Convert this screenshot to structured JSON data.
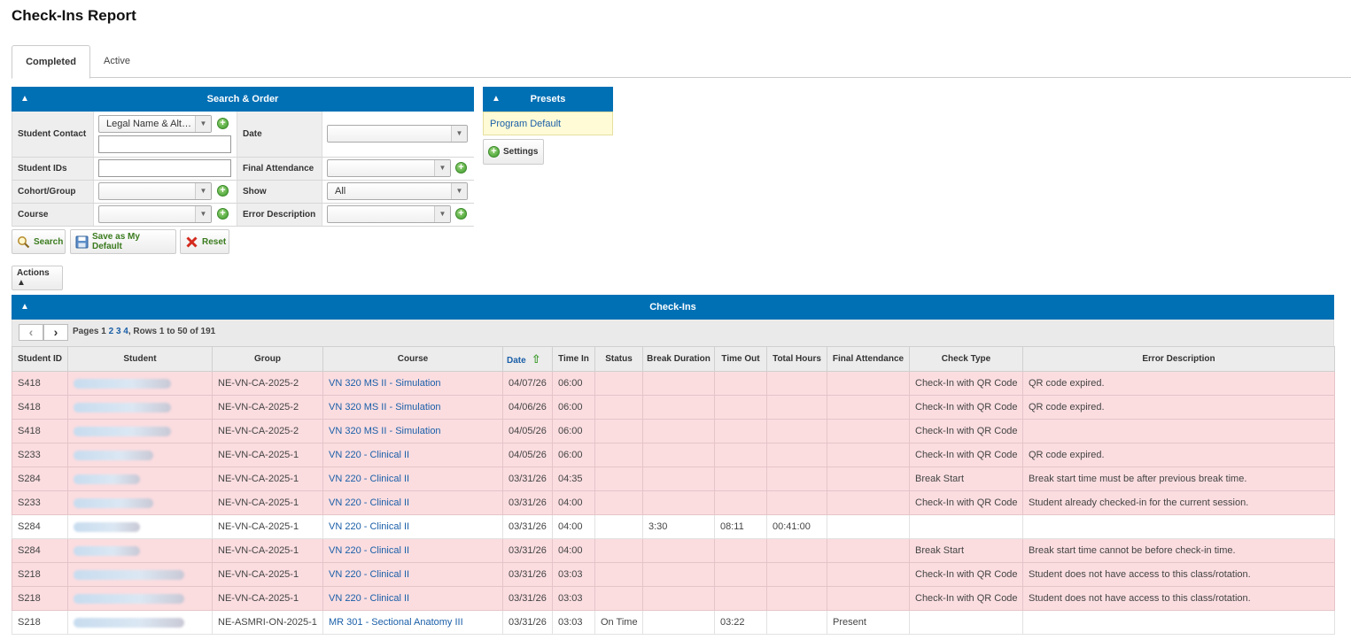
{
  "page": {
    "title": "Check-Ins Report"
  },
  "tabs": [
    {
      "label": "Completed"
    },
    {
      "label": "Active"
    }
  ],
  "search": {
    "header": "Search & Order",
    "student_contact_label": "Student Contact",
    "student_contact_select": "Legal Name & Alt…",
    "date_label": "Date",
    "student_ids_label": "Student IDs",
    "final_attendance_label": "Final Attendance",
    "cohort_label": "Cohort/Group",
    "show_label": "Show",
    "show_value": "All",
    "course_label": "Course",
    "error_description_label": "Error Description",
    "search_button": "Search",
    "save_default_button": "Save as My Default",
    "reset_button": "Reset"
  },
  "presets": {
    "header": "Presets",
    "item": "Program Default",
    "settings_button": "Settings"
  },
  "actions": {
    "label": "Actions ▲"
  },
  "checkins": {
    "header": "Check-Ins",
    "pager": {
      "pages_label": "Pages",
      "page_1": "1",
      "page_2": "2",
      "page_3": "3",
      "page_4": "4",
      "rows_text": ", Rows 1 to 50 of 191"
    },
    "columns": [
      "Student ID",
      "Student",
      "Group",
      "Course",
      "Date",
      "Time In",
      "Status",
      "Break Duration",
      "Time Out",
      "Total Hours",
      "Final Attendance",
      "Check Type",
      "Error Description"
    ],
    "rows": [
      {
        "id": "S418",
        "group": "NE-VN-CA-2025-2",
        "course": "VN 320 MS II - Simulation",
        "date": "04/07/26",
        "time_in": "06:00",
        "status": "",
        "break": "",
        "time_out": "",
        "total": "",
        "final": "",
        "check_type": "Check-In with QR Code",
        "error": "QR code expired.",
        "state": "err"
      },
      {
        "id": "S418",
        "group": "NE-VN-CA-2025-2",
        "course": "VN 320 MS II - Simulation",
        "date": "04/06/26",
        "time_in": "06:00",
        "status": "",
        "break": "",
        "time_out": "",
        "total": "",
        "final": "",
        "check_type": "Check-In with QR Code",
        "error": "QR code expired.",
        "state": "err"
      },
      {
        "id": "S418",
        "group": "NE-VN-CA-2025-2",
        "course": "VN 320 MS II - Simulation",
        "date": "04/05/26",
        "time_in": "06:00",
        "status": "",
        "break": "",
        "time_out": "",
        "total": "",
        "final": "",
        "check_type": "Check-In with QR Code",
        "error": "",
        "state": "err"
      },
      {
        "id": "S233",
        "group": "NE-VN-CA-2025-1",
        "course": "VN 220 - Clinical II",
        "date": "04/05/26",
        "time_in": "06:00",
        "status": "",
        "break": "",
        "time_out": "",
        "total": "",
        "final": "",
        "check_type": "Check-In with QR Code",
        "error": "QR code expired.",
        "state": "err"
      },
      {
        "id": "S284",
        "group": "NE-VN-CA-2025-1",
        "course": "VN 220 - Clinical II",
        "date": "03/31/26",
        "time_in": "04:35",
        "status": "",
        "break": "",
        "time_out": "",
        "total": "",
        "final": "",
        "check_type": "Break Start",
        "error": "Break start time must be after previous break time.",
        "state": "err"
      },
      {
        "id": "S233",
        "group": "NE-VN-CA-2025-1",
        "course": "VN 220 - Clinical II",
        "date": "03/31/26",
        "time_in": "04:00",
        "status": "",
        "break": "",
        "time_out": "",
        "total": "",
        "final": "",
        "check_type": "Check-In with QR Code",
        "error": "Student already checked-in for the current session.",
        "state": "err"
      },
      {
        "id": "S284",
        "group": "NE-VN-CA-2025-1",
        "course": "VN 220 - Clinical II",
        "date": "03/31/26",
        "time_in": "04:00",
        "status": "",
        "break": "3:30",
        "time_out": "08:11",
        "total": "00:41:00",
        "final": "",
        "check_type": "",
        "error": "",
        "state": "ok"
      },
      {
        "id": "S284",
        "group": "NE-VN-CA-2025-1",
        "course": "VN 220 - Clinical II",
        "date": "03/31/26",
        "time_in": "04:00",
        "status": "",
        "break": "",
        "time_out": "",
        "total": "",
        "final": "",
        "check_type": "Break Start",
        "error": "Break start time cannot be before check-in time.",
        "state": "err"
      },
      {
        "id": "S218",
        "group": "NE-VN-CA-2025-1",
        "course": "VN 220 - Clinical II",
        "date": "03/31/26",
        "time_in": "03:03",
        "status": "",
        "break": "",
        "time_out": "",
        "total": "",
        "final": "",
        "check_type": "Check-In with QR Code",
        "error": "Student does not have access to this class/rotation.",
        "state": "err"
      },
      {
        "id": "S218",
        "group": "NE-VN-CA-2025-1",
        "course": "VN 220 - Clinical II",
        "date": "03/31/26",
        "time_in": "03:03",
        "status": "",
        "break": "",
        "time_out": "",
        "total": "",
        "final": "",
        "check_type": "Check-In with QR Code",
        "error": "Student does not have access to this class/rotation.",
        "state": "err"
      },
      {
        "id": "S218",
        "group": "NE-ASMRI-ON-2025-1",
        "course": "MR 301 - Sectional Anatomy III",
        "date": "03/31/26",
        "time_in": "03:03",
        "status": "On Time",
        "break": "",
        "time_out": "03:22",
        "total": "",
        "final": "Present",
        "check_type": "",
        "error": "",
        "state": "ok"
      }
    ]
  }
}
